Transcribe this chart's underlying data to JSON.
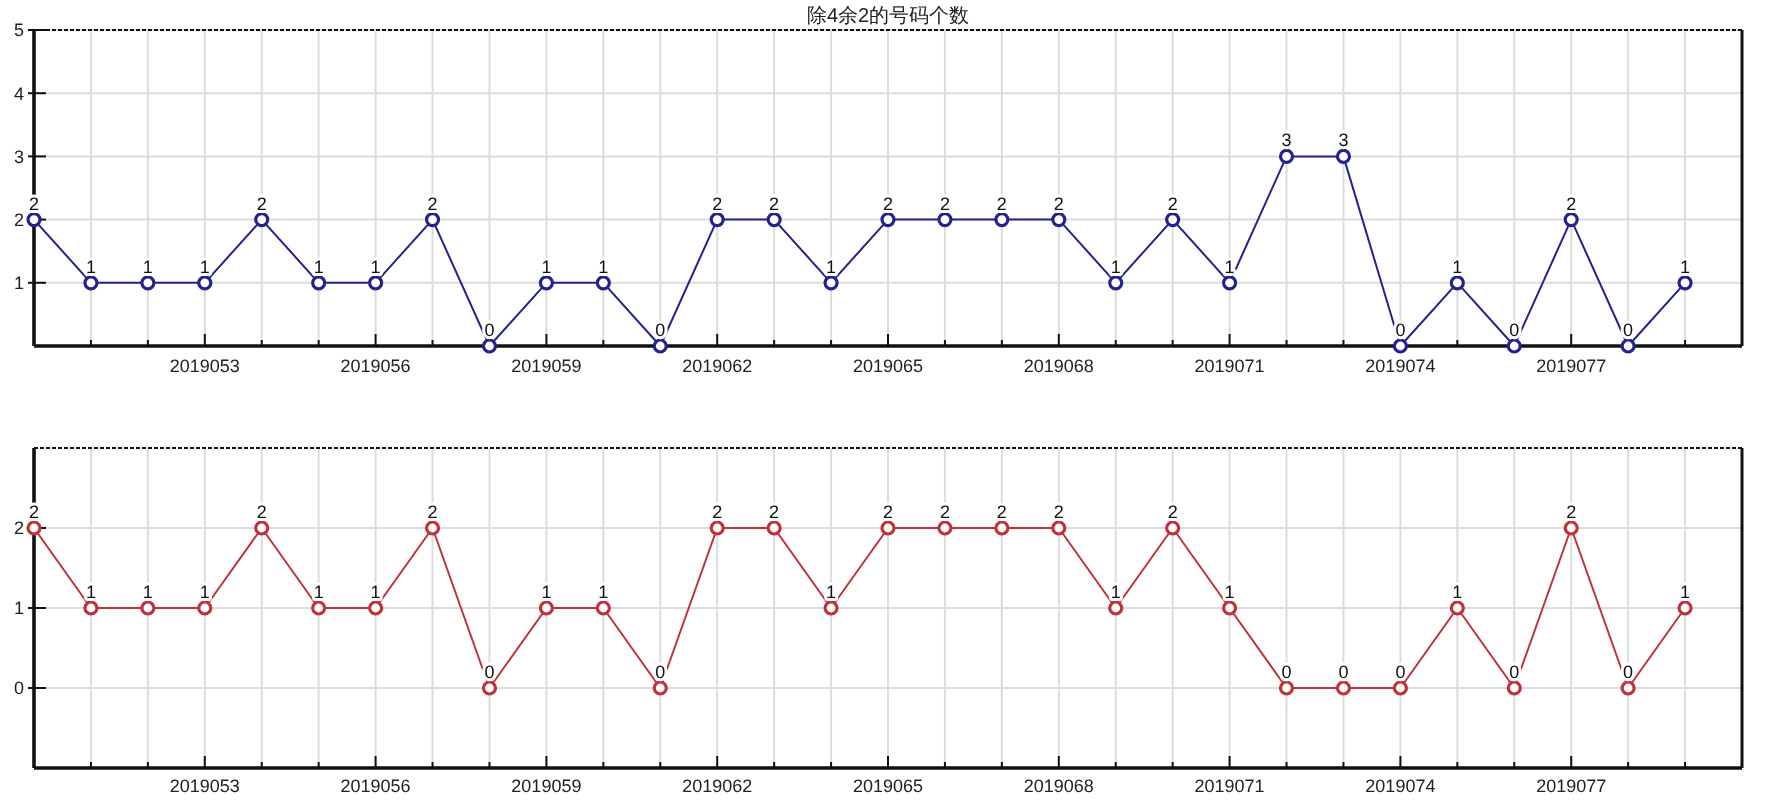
{
  "chart_data": [
    {
      "type": "line",
      "title": "除4余2的号码个数",
      "x": [
        2019050,
        2019051,
        2019052,
        2019053,
        2019054,
        2019055,
        2019056,
        2019057,
        2019058,
        2019059,
        2019060,
        2019061,
        2019062,
        2019063,
        2019064,
        2019065,
        2019066,
        2019067,
        2019068,
        2019069,
        2019070,
        2019071,
        2019072,
        2019073,
        2019074,
        2019075,
        2019076,
        2019077,
        2019078,
        2019079
      ],
      "values": [
        2,
        1,
        1,
        1,
        2,
        1,
        1,
        2,
        0,
        1,
        1,
        0,
        2,
        2,
        1,
        2,
        2,
        2,
        2,
        1,
        2,
        1,
        3,
        3,
        0,
        1,
        0,
        2,
        0,
        1
      ],
      "color": "#23238e",
      "xlim": [
        2019050,
        2019080
      ],
      "xticks": [
        {
          "value": 2019051,
          "label": null
        },
        {
          "value": 2019052,
          "label": null
        },
        2019053,
        {
          "value": 2019054,
          "label": null
        },
        {
          "value": 2019055,
          "label": null
        },
        2019056,
        {
          "value": 2019057,
          "label": null
        },
        {
          "value": 2019058,
          "label": null
        },
        2019059,
        {
          "value": 2019060,
          "label": null
        },
        {
          "value": 2019061,
          "label": null
        },
        2019062,
        {
          "value": 2019063,
          "label": null
        },
        {
          "value": 2019064,
          "label": null
        },
        2019065,
        {
          "value": 2019066,
          "label": null
        },
        {
          "value": 2019067,
          "label": null
        },
        2019068,
        {
          "value": 2019069,
          "label": null
        },
        {
          "value": 2019070,
          "label": null
        },
        2019071,
        {
          "value": 2019072,
          "label": null
        },
        {
          "value": 2019073,
          "label": null
        },
        2019074,
        {
          "value": 2019075,
          "label": null
        },
        {
          "value": 2019076,
          "label": null
        },
        2019077,
        {
          "value": 2019078,
          "label": null
        },
        {
          "value": 2019079,
          "label": null
        }
      ],
      "ylim": [
        0,
        5
      ],
      "yticks": [
        1,
        2,
        3,
        4,
        5
      ],
      "grid": true,
      "marker": "circle",
      "data_labels": true
    },
    {
      "type": "line",
      "x": [
        2019050,
        2019051,
        2019052,
        2019053,
        2019054,
        2019055,
        2019056,
        2019057,
        2019058,
        2019059,
        2019060,
        2019061,
        2019062,
        2019063,
        2019064,
        2019065,
        2019066,
        2019067,
        2019068,
        2019069,
        2019070,
        2019071,
        2019072,
        2019073,
        2019074,
        2019075,
        2019076,
        2019077,
        2019078,
        2019079
      ],
      "values": [
        2,
        1,
        1,
        1,
        2,
        1,
        1,
        2,
        0,
        1,
        1,
        0,
        2,
        2,
        1,
        2,
        2,
        2,
        2,
        1,
        2,
        1,
        0,
        0,
        0,
        1,
        0,
        2,
        0,
        1
      ],
      "color": "#c0323a",
      "xlim": [
        2019050,
        2019080
      ],
      "xticks": [
        {
          "value": 2019051,
          "label": null
        },
        {
          "value": 2019052,
          "label": null
        },
        2019053,
        {
          "value": 2019054,
          "label": null
        },
        {
          "value": 2019055,
          "label": null
        },
        2019056,
        {
          "value": 2019057,
          "label": null
        },
        {
          "value": 2019058,
          "label": null
        },
        2019059,
        {
          "value": 2019060,
          "label": null
        },
        {
          "value": 2019061,
          "label": null
        },
        2019062,
        {
          "value": 2019063,
          "label": null
        },
        {
          "value": 2019064,
          "label": null
        },
        2019065,
        {
          "value": 2019066,
          "label": null
        },
        {
          "value": 2019067,
          "label": null
        },
        2019068,
        {
          "value": 2019069,
          "label": null
        },
        {
          "value": 2019070,
          "label": null
        },
        2019071,
        {
          "value": 2019072,
          "label": null
        },
        {
          "value": 2019073,
          "label": null
        },
        2019074,
        {
          "value": 2019075,
          "label": null
        },
        {
          "value": 2019076,
          "label": null
        },
        2019077,
        {
          "value": 2019078,
          "label": null
        },
        {
          "value": 2019079,
          "label": null
        }
      ],
      "ylim": [
        -1,
        3
      ],
      "yticks": [
        0,
        1,
        2
      ],
      "grid": true,
      "marker": "circle",
      "data_labels": true
    }
  ]
}
